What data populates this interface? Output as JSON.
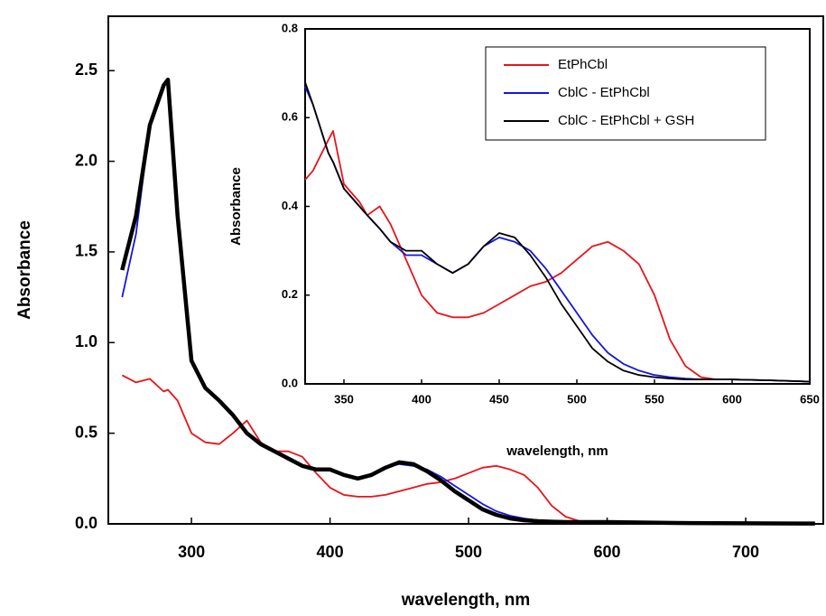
{
  "chart_data": [
    {
      "type": "line",
      "xlabel": "wavelength, nm",
      "ylabel": "Absorbance",
      "xlim": [
        240,
        756
      ],
      "ylim": [
        0,
        2.8
      ],
      "xticks": [
        300,
        400,
        500,
        600,
        700
      ],
      "yticks": [
        {
          "value": 0,
          "label": "0.0"
        },
        0.5,
        {
          "value": 1,
          "label": "1.0"
        },
        1.5,
        {
          "value": 2,
          "label": "2.0"
        },
        2.5
      ],
      "x": [
        250,
        260,
        270,
        280,
        283,
        290,
        300,
        310,
        320,
        330,
        340,
        350,
        360,
        370,
        380,
        390,
        400,
        410,
        420,
        430,
        440,
        450,
        460,
        470,
        480,
        490,
        500,
        510,
        520,
        530,
        540,
        550,
        560,
        570,
        580,
        590,
        600,
        650,
        700,
        750
      ],
      "series": [
        {
          "name": "EtPhCbl",
          "color": "#e8141b",
          "values": [
            0.82,
            0.78,
            0.8,
            0.73,
            0.74,
            0.68,
            0.5,
            0.45,
            0.44,
            0.5,
            0.57,
            0.45,
            0.4,
            0.4,
            0.37,
            0.28,
            0.2,
            0.16,
            0.15,
            0.15,
            0.16,
            0.18,
            0.2,
            0.22,
            0.23,
            0.25,
            0.28,
            0.31,
            0.32,
            0.3,
            0.27,
            0.2,
            0.1,
            0.04,
            0.015,
            0.01,
            0.01,
            0.005,
            0.003,
            0.002
          ]
        },
        {
          "name": "CblC - EtPhCbl",
          "color": "#1515e0",
          "values": [
            1.25,
            1.6,
            2.2,
            2.42,
            2.45,
            1.7,
            0.9,
            0.75,
            0.68,
            0.6,
            0.5,
            0.44,
            0.4,
            0.36,
            0.32,
            0.3,
            0.3,
            0.27,
            0.25,
            0.27,
            0.31,
            0.33,
            0.32,
            0.3,
            0.26,
            0.21,
            0.16,
            0.11,
            0.07,
            0.045,
            0.03,
            0.02,
            0.015,
            0.012,
            0.01,
            0.01,
            0.01,
            0.005,
            0.003,
            0.002
          ]
        },
        {
          "name": "CblC - EtPhCbl + GSH",
          "color": "#000000",
          "values": [
            1.4,
            1.7,
            2.2,
            2.42,
            2.45,
            1.7,
            0.9,
            0.75,
            0.68,
            0.6,
            0.5,
            0.44,
            0.4,
            0.36,
            0.32,
            0.3,
            0.3,
            0.27,
            0.25,
            0.27,
            0.31,
            0.34,
            0.33,
            0.29,
            0.24,
            0.18,
            0.13,
            0.08,
            0.05,
            0.03,
            0.02,
            0.015,
            0.012,
            0.01,
            0.01,
            0.01,
            0.01,
            0.005,
            0.003,
            0.002
          ]
        }
      ]
    },
    {
      "type": "line",
      "xlabel": "wavelength, nm",
      "ylabel": "Absorbance",
      "xlim": [
        325,
        650
      ],
      "ylim": [
        0,
        0.8
      ],
      "legend": "upper right",
      "xticks": [
        350,
        400,
        450,
        500,
        550,
        600,
        650
      ],
      "yticks": [
        {
          "value": 0,
          "label": "0.0"
        },
        0.2,
        0.4,
        0.6,
        0.8
      ],
      "x": [
        325,
        330,
        340,
        343,
        350,
        360,
        365,
        373,
        380,
        390,
        400,
        410,
        420,
        430,
        440,
        450,
        460,
        470,
        480,
        490,
        500,
        510,
        520,
        530,
        540,
        550,
        560,
        570,
        580,
        590,
        600,
        625,
        650
      ],
      "series": [
        {
          "name": "EtPhCbl",
          "color": "#e8141b",
          "values": [
            0.46,
            0.48,
            0.55,
            0.57,
            0.45,
            0.41,
            0.38,
            0.4,
            0.36,
            0.28,
            0.2,
            0.16,
            0.15,
            0.15,
            0.16,
            0.18,
            0.2,
            0.22,
            0.23,
            0.25,
            0.28,
            0.31,
            0.32,
            0.3,
            0.27,
            0.2,
            0.1,
            0.04,
            0.015,
            0.01,
            0.01,
            0.008,
            0.005
          ]
        },
        {
          "name": "CblC - EtPhCbl",
          "color": "#1515e0",
          "values": [
            0.67,
            0.63,
            0.52,
            0.5,
            0.44,
            0.4,
            0.38,
            0.35,
            0.32,
            0.29,
            0.29,
            0.27,
            0.25,
            0.27,
            0.31,
            0.33,
            0.32,
            0.3,
            0.26,
            0.21,
            0.16,
            0.11,
            0.07,
            0.045,
            0.03,
            0.02,
            0.015,
            0.012,
            0.01,
            0.01,
            0.01,
            0.008,
            0.005
          ]
        },
        {
          "name": "CblC - EtPhCbl + GSH",
          "color": "#000000",
          "values": [
            0.68,
            0.63,
            0.52,
            0.5,
            0.44,
            0.4,
            0.38,
            0.35,
            0.32,
            0.3,
            0.3,
            0.27,
            0.25,
            0.27,
            0.31,
            0.34,
            0.33,
            0.29,
            0.24,
            0.18,
            0.13,
            0.08,
            0.05,
            0.03,
            0.02,
            0.015,
            0.012,
            0.01,
            0.01,
            0.01,
            0.01,
            0.008,
            0.005
          ]
        }
      ]
    }
  ]
}
